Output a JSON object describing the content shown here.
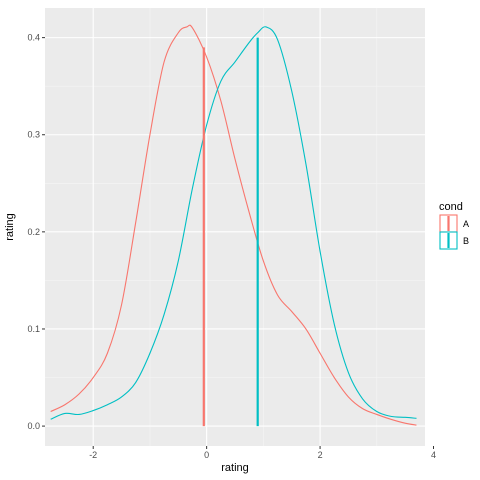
{
  "chart_data": {
    "type": "line",
    "title": "",
    "xlabel": "rating",
    "ylabel": "rating",
    "xlim": [
      -2.85,
      3.85
    ],
    "ylim": [
      -0.0205,
      0.4305
    ],
    "x_ticks": [
      -2,
      0,
      2,
      4
    ],
    "x_tick_labels": [
      "-2",
      "0",
      "2",
      "4"
    ],
    "y_ticks": [
      0.0,
      0.1,
      0.2,
      0.3,
      0.4
    ],
    "y_tick_labels": [
      "0.0",
      "0.1",
      "0.2",
      "0.3",
      "0.4"
    ],
    "grid": true,
    "legend": {
      "title": "cond",
      "placement": "right",
      "entries": [
        {
          "label": "A",
          "color": "#F8766D"
        },
        {
          "label": "B",
          "color": "#00BFC4"
        }
      ]
    },
    "series": [
      {
        "name": "A",
        "color": "#F8766D",
        "x": [
          -2.75,
          -2.5,
          -2.25,
          -2.0,
          -1.75,
          -1.5,
          -1.25,
          -1.0,
          -0.75,
          -0.5,
          -0.35,
          -0.25,
          0.0,
          0.25,
          0.5,
          0.75,
          1.0,
          1.25,
          1.5,
          1.75,
          2.0,
          2.25,
          2.5,
          2.75,
          3.0,
          3.25,
          3.5,
          3.7
        ],
        "values": [
          0.015,
          0.022,
          0.033,
          0.05,
          0.075,
          0.125,
          0.21,
          0.3,
          0.375,
          0.405,
          0.411,
          0.41,
          0.38,
          0.335,
          0.275,
          0.22,
          0.17,
          0.135,
          0.118,
          0.1,
          0.075,
          0.05,
          0.03,
          0.018,
          0.012,
          0.007,
          0.003,
          0.001
        ]
      },
      {
        "name": "B",
        "color": "#00BFC4",
        "x": [
          -2.75,
          -2.5,
          -2.25,
          -2.0,
          -1.75,
          -1.5,
          -1.25,
          -1.0,
          -0.75,
          -0.5,
          -0.25,
          0.0,
          0.25,
          0.5,
          0.75,
          0.9,
          1.05,
          1.25,
          1.5,
          1.75,
          2.0,
          2.25,
          2.5,
          2.75,
          3.0,
          3.25,
          3.5,
          3.7
        ],
        "values": [
          0.007,
          0.013,
          0.012,
          0.016,
          0.022,
          0.03,
          0.045,
          0.075,
          0.115,
          0.17,
          0.245,
          0.31,
          0.355,
          0.375,
          0.395,
          0.405,
          0.411,
          0.398,
          0.345,
          0.27,
          0.18,
          0.105,
          0.055,
          0.028,
          0.015,
          0.01,
          0.009,
          0.008
        ]
      }
    ],
    "reference_lines": [
      {
        "series": "A",
        "x": -0.05,
        "y_top": 0.39,
        "color": "#F8766D"
      },
      {
        "series": "B",
        "x": 0.9,
        "y_top": 0.4,
        "color": "#00BFC4"
      }
    ]
  }
}
